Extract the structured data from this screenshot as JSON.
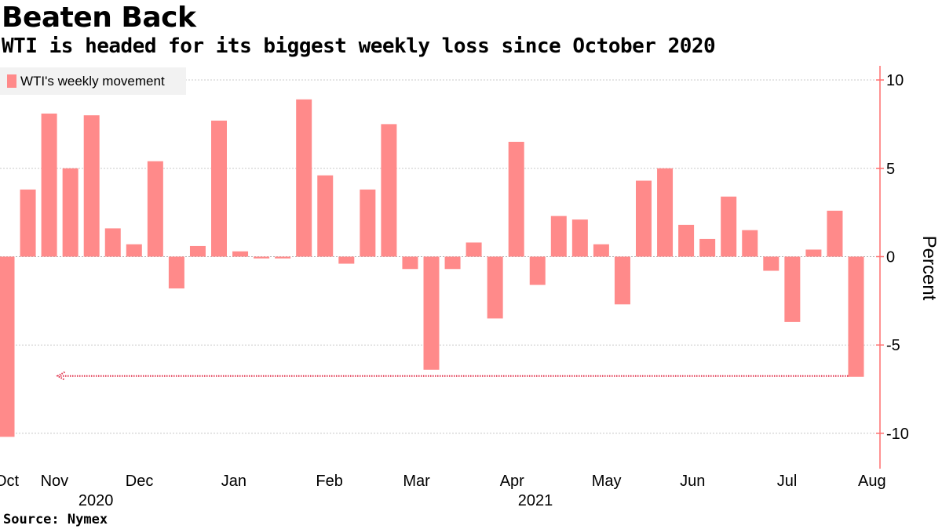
{
  "title": "Beaten Back",
  "subtitle": "WTI is headed for its biggest weekly loss since October 2020",
  "source": "Source: Nymex",
  "colors": {
    "bar": "#ff8a8a",
    "axis": "#ff6f6f",
    "grid": "#c8c8c8",
    "arrow": "#e0304a"
  },
  "chart_data": {
    "type": "bar",
    "title": "Beaten Back",
    "ylabel": "Percent",
    "xlabel": "",
    "ylim": [
      -12,
      10.8
    ],
    "yticks": [
      10,
      5,
      0,
      -5,
      -10
    ],
    "ytick_labels": [
      "10",
      "5",
      "0",
      "-5",
      "-10"
    ],
    "legend": {
      "label": "WTI's weekly movement",
      "placement": "top-left"
    },
    "series": [
      {
        "name": "WTI's weekly movement",
        "values": [
          -10.2,
          3.8,
          8.1,
          5.0,
          8.0,
          1.6,
          0.7,
          5.4,
          -1.8,
          0.6,
          7.7,
          0.3,
          -0.1,
          -0.1,
          8.9,
          4.6,
          -0.4,
          3.8,
          7.5,
          -0.7,
          -6.4,
          -0.7,
          0.8,
          -3.5,
          6.5,
          -1.6,
          2.3,
          2.1,
          0.7,
          -2.7,
          4.3,
          5.0,
          1.8,
          1.0,
          3.4,
          1.5,
          -0.8,
          -3.7,
          0.4,
          2.6,
          -6.8
        ]
      }
    ],
    "x_tick_labels": [
      {
        "label": "Oct",
        "bar_index": 0
      },
      {
        "label": "Nov",
        "bar_index": 2.25
      },
      {
        "label": "Dec",
        "bar_index": 6.25
      },
      {
        "label": "Jan",
        "bar_index": 10.7
      },
      {
        "label": "Feb",
        "bar_index": 15.2
      },
      {
        "label": "Mar",
        "bar_index": 19.3
      },
      {
        "label": "Apr",
        "bar_index": 23.8
      },
      {
        "label": "May",
        "bar_index": 28.25
      },
      {
        "label": "Jun",
        "bar_index": 32.3
      },
      {
        "label": "Jul",
        "bar_index": 36.75
      },
      {
        "label": "Aug",
        "bar_index": 40.75
      }
    ],
    "year_labels": [
      {
        "label": "2020",
        "bar_index": 4.2
      },
      {
        "label": "2021",
        "bar_index": 24.9
      }
    ],
    "annotation": {
      "type": "arrow",
      "from_bar_index": 40,
      "to_bar_index": 2.4,
      "value": -6.8
    }
  }
}
